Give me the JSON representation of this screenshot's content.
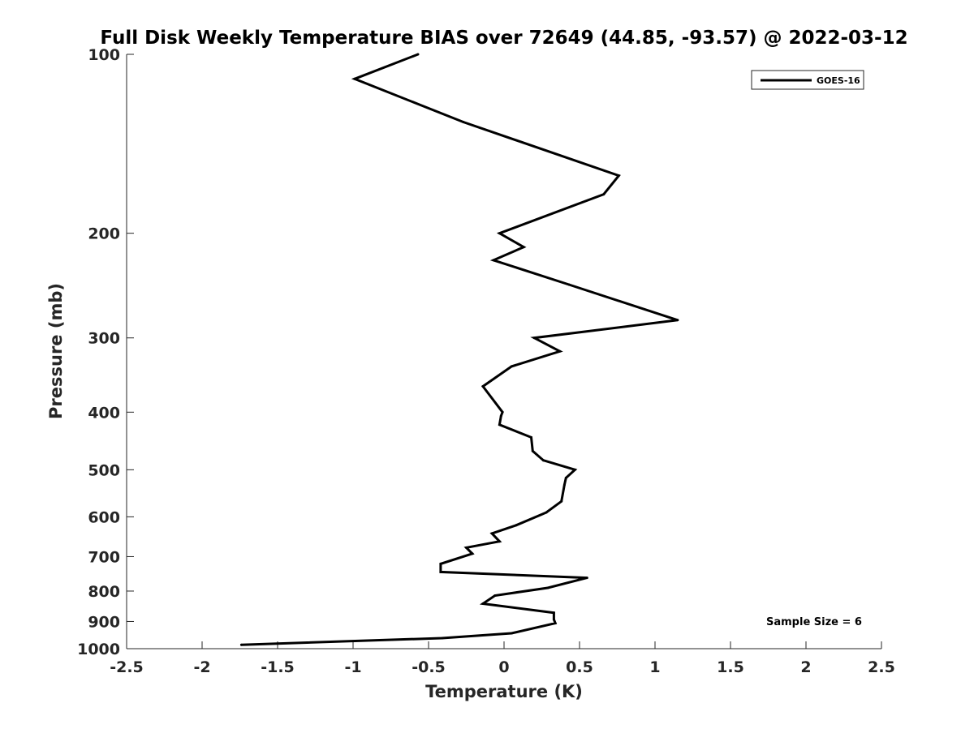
{
  "chart_data": {
    "type": "line",
    "title": "Full Disk Weekly Temperature BIAS over 72649 (44.85, -93.57) @ 2022-03-12",
    "xlabel": "Temperature (K)",
    "ylabel": "Pressure (mb)",
    "xlim": [
      -2.5,
      2.5
    ],
    "ylim": [
      100,
      1000
    ],
    "y_scale": "log",
    "y_reversed": true,
    "x_ticks": [
      "-2.5",
      "-2",
      "-1.5",
      "-1",
      "-0.5",
      "0",
      "0.5",
      "1",
      "1.5",
      "2",
      "2.5"
    ],
    "x_tick_values": [
      -2.5,
      -2,
      -1.5,
      -1,
      -0.5,
      0,
      0.5,
      1,
      1.5,
      2,
      2.5
    ],
    "y_ticks": [
      "100",
      "200",
      "300",
      "400",
      "500",
      "600",
      "700",
      "800",
      "900",
      "1000"
    ],
    "y_tick_values": [
      100,
      200,
      300,
      400,
      500,
      600,
      700,
      800,
      900,
      1000
    ],
    "grid": false,
    "legend_position": "top-right",
    "annotation": "Sample Size = 6",
    "line_color": "#000000",
    "series": [
      {
        "name": "GOES-16",
        "x": [
          -0.57,
          -0.99,
          -0.27,
          0.76,
          0.66,
          -0.03,
          0.13,
          -0.07,
          0.43,
          1.15,
          0.2,
          0.37,
          0.05,
          -0.14,
          -0.01,
          -0.02,
          -0.03,
          0.18,
          0.19,
          0.26,
          0.47,
          0.41,
          0.4,
          0.38,
          0.28,
          0.08,
          -0.08,
          -0.03,
          -0.25,
          -0.21,
          -0.42,
          -0.42,
          0.55,
          0.29,
          -0.06,
          -0.14,
          0.33,
          0.33,
          0.34,
          0.05,
          -0.41,
          -1.74
        ],
        "y": [
          100,
          110,
          130,
          160,
          172,
          200,
          211,
          222,
          244,
          280,
          300,
          316,
          335,
          362,
          400,
          406,
          420,
          441,
          465,
          482,
          500,
          516,
          530,
          565,
          590,
          620,
          640,
          660,
          676,
          692,
          720,
          743,
          760,
          790,
          814,
          840,
          870,
          893,
          906,
          942,
          960,
          985
        ]
      }
    ]
  }
}
